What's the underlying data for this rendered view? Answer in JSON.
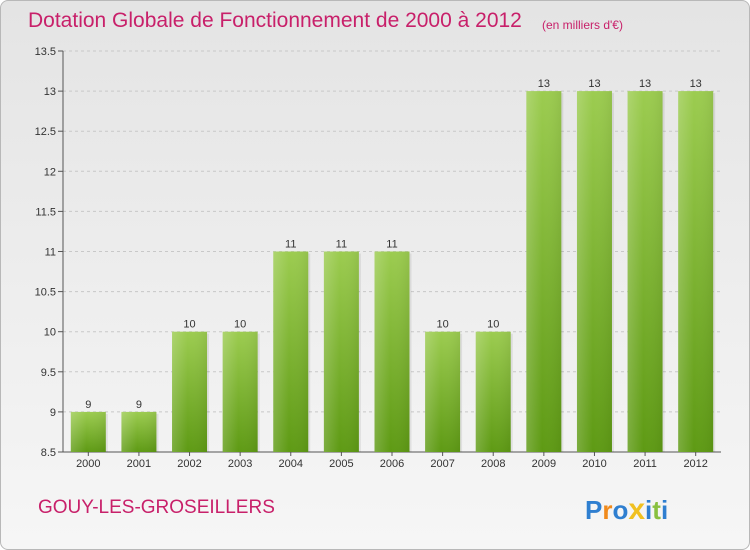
{
  "header": {
    "title": "Dotation Globale de Fonctionnement de 2000 à 2012",
    "unit": "(en milliers d'€)"
  },
  "footer": {
    "commune": "GOUY-LES-GROSEILLERS",
    "brand": "Proxiti"
  },
  "colors": {
    "title": "#c8206a",
    "bar_top": "#9ccc50",
    "bar_bottom": "#5e9a14"
  },
  "chart_data": {
    "type": "bar",
    "categories": [
      "2000",
      "2001",
      "2002",
      "2003",
      "2004",
      "2005",
      "2006",
      "2007",
      "2008",
      "2009",
      "2010",
      "2011",
      "2012"
    ],
    "values": [
      9,
      9,
      10,
      10,
      11,
      11,
      11,
      10,
      10,
      13,
      13,
      13,
      13
    ],
    "data_labels": [
      "9",
      "9",
      "10",
      "10",
      "11",
      "11",
      "11",
      "10",
      "10",
      "13",
      "13",
      "13",
      "13"
    ],
    "yticks": [
      8.5,
      9,
      9.5,
      10,
      10.5,
      11,
      11.5,
      12,
      12.5,
      13,
      13.5
    ],
    "ylim": [
      8.5,
      13.5
    ],
    "grid": true,
    "legend": "none"
  }
}
